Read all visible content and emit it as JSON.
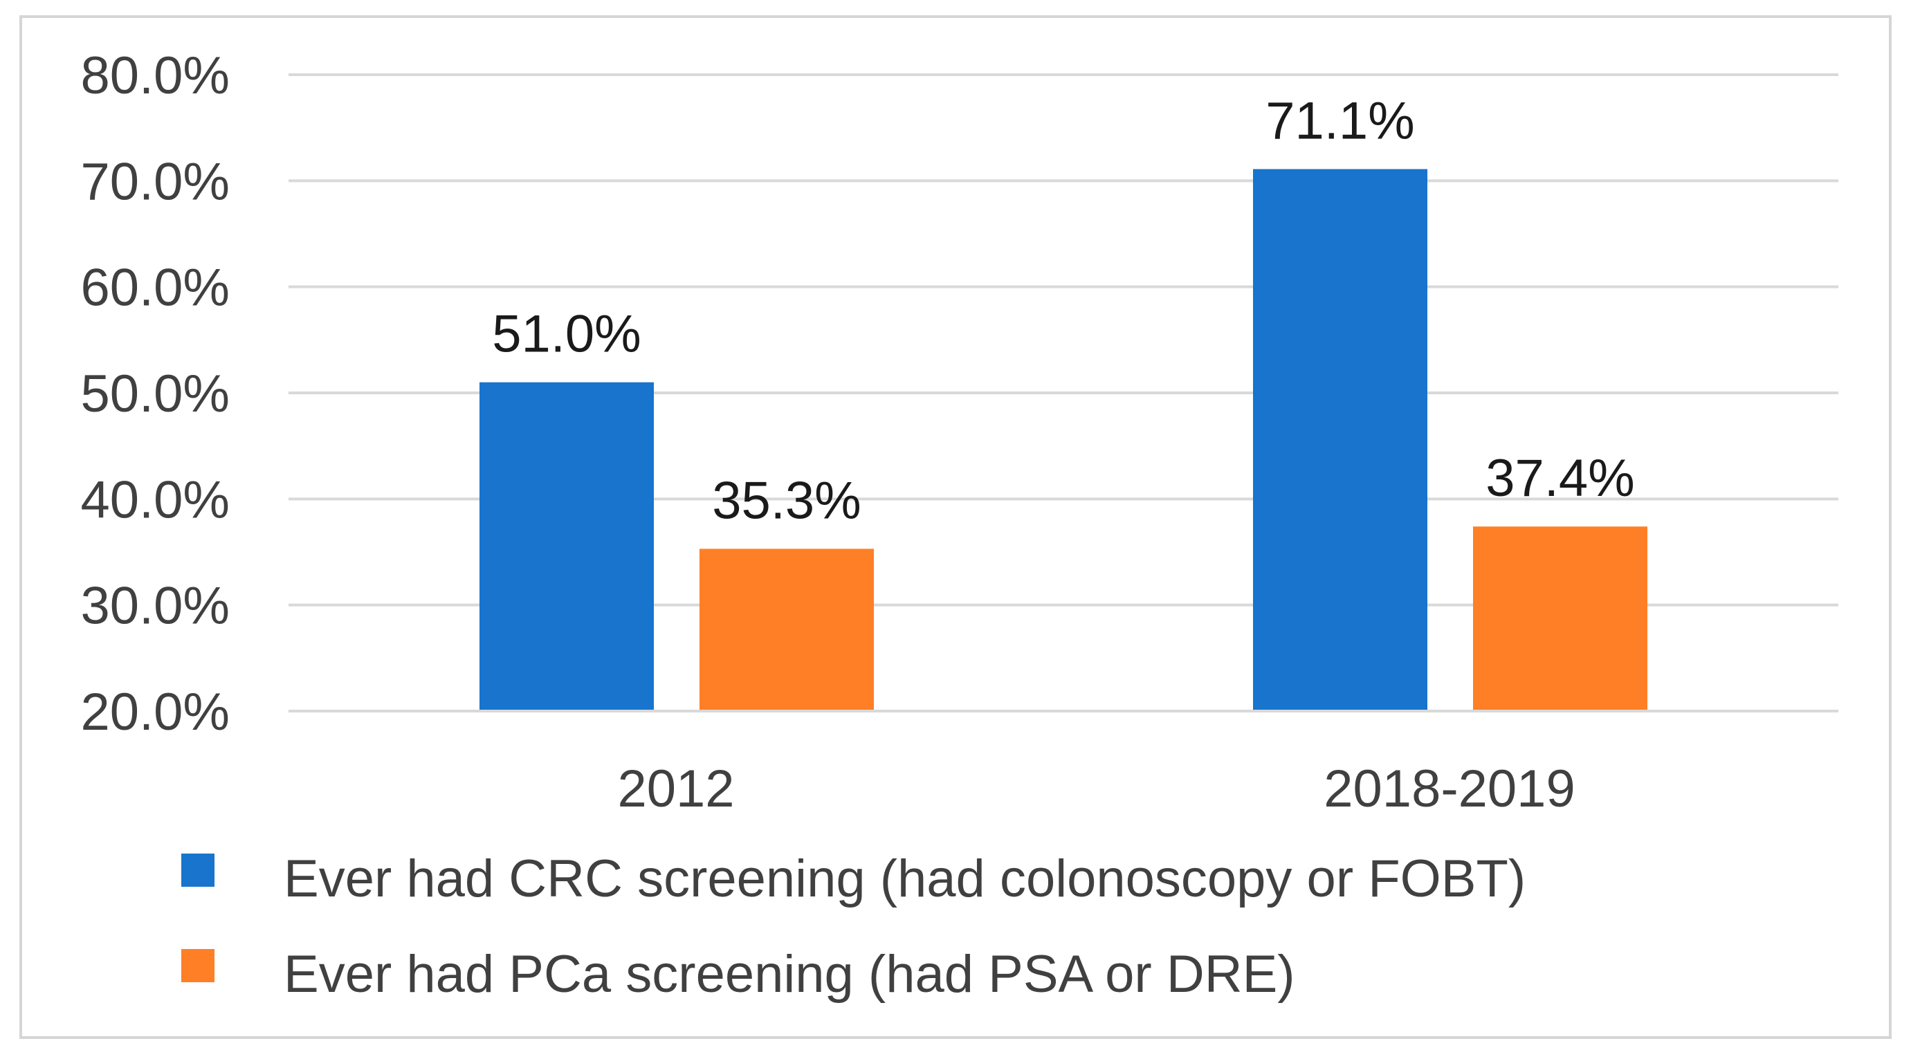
{
  "chart_data": {
    "type": "bar",
    "title": "",
    "xlabel": "",
    "ylabel": "",
    "ylim": [
      20,
      80
    ],
    "yticks": [
      "20.0%",
      "30.0%",
      "40.0%",
      "50.0%",
      "60.0%",
      "70.0%",
      "80.0%"
    ],
    "categories": [
      "2012",
      "2018-2019"
    ],
    "series": [
      {
        "name": "Ever had CRC screening (had colonoscopy or FOBT)",
        "color": "#1874cd",
        "values": [
          51.0,
          71.1
        ],
        "labels": [
          "51.0%",
          "71.1%"
        ]
      },
      {
        "name": "Ever had PCa screening (had PSA or DRE)",
        "color": "#ff7f27",
        "values": [
          35.3,
          37.4
        ],
        "labels": [
          "35.3%",
          "37.4%"
        ]
      }
    ],
    "grid": true,
    "legend_position": "bottom"
  }
}
